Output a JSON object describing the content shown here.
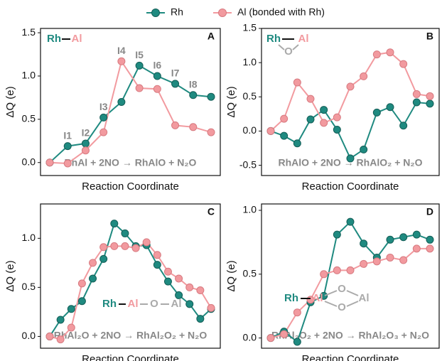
{
  "chart_data": [
    {
      "type": "line",
      "panel_label": "A",
      "xlabel": "Reaction Coordinate",
      "ylabel": "ΔQ (e)",
      "equation": "RhAl + 2NO → RhAlO + N₂O",
      "inset": [
        "Rh",
        "Al"
      ],
      "annotations": [
        "I1",
        "I2",
        "I3",
        "I4",
        "I5",
        "I6",
        "I7",
        "I8"
      ],
      "ylim": [
        -0.15,
        1.55
      ],
      "yticks": [
        {
          "value": 0,
          "label": "0.0"
        },
        0.5,
        {
          "value": 1,
          "label": "1.0"
        },
        1.5
      ],
      "series": [
        {
          "name": "Rh",
          "color": "#1f8a80",
          "values": [
            0.0,
            0.19,
            0.22,
            0.52,
            0.7,
            1.12,
            1.0,
            0.91,
            0.78,
            0.76
          ]
        },
        {
          "name": "Al (bonded with Rh)",
          "color": "#f29a9f",
          "values": [
            0.0,
            -0.01,
            0.14,
            0.35,
            1.17,
            0.86,
            0.85,
            0.43,
            0.41,
            0.35
          ]
        }
      ]
    },
    {
      "type": "line",
      "panel_label": "B",
      "xlabel": "Reaction Coordinate",
      "ylabel": "ΔQ (e)",
      "equation": "RhAlO + 2NO → RhAlO₂ + N₂O",
      "inset": [
        "Rh",
        "Al",
        "O"
      ],
      "ylim": [
        -0.65,
        1.5
      ],
      "yticks": [
        -0.5,
        {
          "value": 0,
          "label": "0.0"
        },
        0.5,
        {
          "value": 1,
          "label": "1.0"
        },
        1.5
      ],
      "series": [
        {
          "name": "Rh",
          "color": "#1f8a80",
          "values": [
            0.0,
            -0.07,
            -0.18,
            0.17,
            0.31,
            0.02,
            -0.4,
            -0.27,
            0.27,
            0.35,
            0.08,
            0.42,
            0.4
          ]
        },
        {
          "name": "Al (bonded with Rh)",
          "color": "#f29a9f",
          "values": [
            0.0,
            0.18,
            0.71,
            0.47,
            0.12,
            0.2,
            0.65,
            0.8,
            1.12,
            1.15,
            0.98,
            0.54,
            0.51
          ]
        }
      ]
    },
    {
      "type": "line",
      "panel_label": "C",
      "xlabel": "Reaction Coordinate",
      "ylabel": "ΔQ (e)",
      "equation": "RhAl₂O + 2NO → RhAl₂O₂ + N₂O",
      "inset": [
        "Rh",
        "Al",
        "O",
        "Al"
      ],
      "ylim": [
        -0.12,
        1.35
      ],
      "yticks": [
        {
          "value": 0,
          "label": "0.0"
        },
        0.5,
        {
          "value": 1,
          "label": "1.0"
        }
      ],
      "series": [
        {
          "name": "Rh",
          "color": "#1f8a80",
          "values": [
            0.0,
            0.17,
            0.28,
            0.36,
            0.59,
            0.79,
            1.15,
            1.05,
            0.92,
            0.93,
            0.73,
            0.56,
            0.42,
            0.33,
            0.18,
            0.28
          ]
        },
        {
          "name": "Al (bonded with Rh)",
          "color": "#f29a9f",
          "values": [
            0.0,
            -0.03,
            0.09,
            0.54,
            0.75,
            0.91,
            0.92,
            0.92,
            0.9,
            0.96,
            0.83,
            0.66,
            0.59,
            0.5,
            0.47,
            0.29
          ]
        }
      ]
    },
    {
      "type": "line",
      "panel_label": "D",
      "xlabel": "Reaction Coordinate",
      "ylabel": "ΔQ (e)",
      "equation": "RhAl₂O₂ + 2NO → RhAl₂O₃ + N₂O",
      "inset": [
        "Rh",
        "Al",
        "O",
        "O",
        "Al"
      ],
      "ylim": [
        -0.08,
        1.05
      ],
      "yticks": [
        {
          "value": 0,
          "label": "0.0"
        },
        0.5,
        {
          "value": 1,
          "label": "1.0"
        }
      ],
      "series": [
        {
          "name": "Rh",
          "color": "#1f8a80",
          "values": [
            0.0,
            0.05,
            -0.03,
            0.28,
            0.33,
            0.81,
            0.91,
            0.74,
            0.63,
            0.77,
            0.79,
            0.81,
            0.77
          ]
        },
        {
          "name": "Al (bonded with Rh)",
          "color": "#f29a9f",
          "values": [
            0.0,
            0.03,
            0.2,
            0.3,
            0.5,
            0.53,
            0.53,
            0.58,
            0.6,
            0.63,
            0.61,
            0.7,
            0.7
          ]
        }
      ]
    }
  ]
}
